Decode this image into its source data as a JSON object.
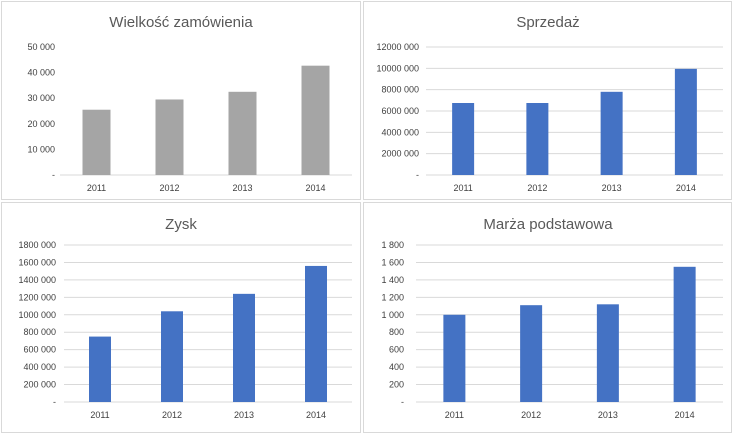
{
  "chart_data": [
    {
      "type": "bar",
      "title": "Wielkość zamówienia",
      "categories": [
        "2011",
        "2012",
        "2013",
        "2014"
      ],
      "values": [
        25500,
        29500,
        32500,
        42700
      ],
      "ylim": [
        0,
        50000
      ],
      "yticks": [
        0,
        10000,
        20000,
        30000,
        40000,
        50000
      ],
      "ytick_labels": [
        "-",
        "10 000",
        "20 000",
        "30 000",
        "40 000",
        "50 000"
      ],
      "color": "#a5a5a5",
      "gridlines": false,
      "legend": "none"
    },
    {
      "type": "bar",
      "title": "Sprzedaż",
      "categories": [
        "2011",
        "2012",
        "2013",
        "2014"
      ],
      "values": [
        6750000,
        6750000,
        7800000,
        9950000
      ],
      "ylim": [
        0,
        12000000
      ],
      "yticks": [
        0,
        2000000,
        4000000,
        6000000,
        8000000,
        10000000,
        12000000
      ],
      "ytick_labels": [
        "-",
        "2000 000",
        "4000 000",
        "6000 000",
        "8000 000",
        "10000 000",
        "12000 000"
      ],
      "color": "#4472c4",
      "gridlines": true,
      "legend": "none"
    },
    {
      "type": "bar",
      "title": "Zysk",
      "categories": [
        "2011",
        "2012",
        "2013",
        "2014"
      ],
      "values": [
        750000,
        1040000,
        1240000,
        1560000
      ],
      "ylim": [
        0,
        1800000
      ],
      "yticks": [
        0,
        200000,
        400000,
        600000,
        800000,
        1000000,
        1200000,
        1400000,
        1600000,
        1800000
      ],
      "ytick_labels": [
        "-",
        "200 000",
        "400 000",
        "600 000",
        "800 000",
        "1000 000",
        "1200 000",
        "1400 000",
        "1600 000",
        "1800 000"
      ],
      "color": "#4472c4",
      "gridlines": true,
      "legend": "none"
    },
    {
      "type": "bar",
      "title": "Marża podstawowa",
      "categories": [
        "2011",
        "2012",
        "2013",
        "2014"
      ],
      "values": [
        1000,
        1110,
        1120,
        1550
      ],
      "ylim": [
        0,
        1800
      ],
      "yticks": [
        0,
        200,
        400,
        600,
        800,
        1000,
        1200,
        1400,
        1600,
        1800
      ],
      "ytick_labels": [
        "-",
        "200",
        "400",
        "600",
        "800",
        "1 000",
        "1 200",
        "1 400",
        "1 600",
        "1 800"
      ],
      "color": "#4472c4",
      "gridlines": true,
      "legend": "none"
    }
  ]
}
